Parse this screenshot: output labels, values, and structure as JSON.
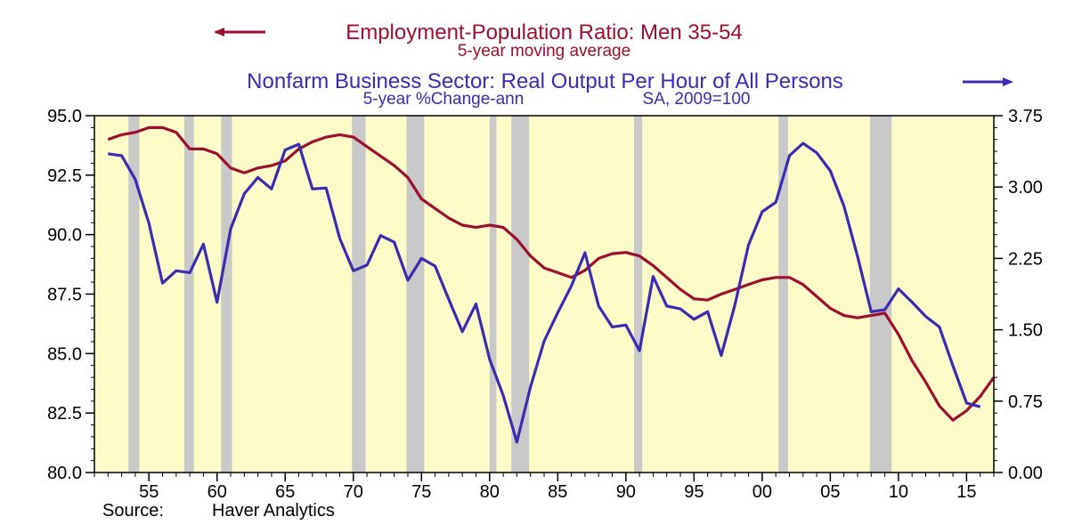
{
  "chart_data": {
    "type": "line",
    "titles": {
      "left_series_title": "Employment-Population Ratio: Men 35-54",
      "left_series_subtitle": "5-year moving average",
      "right_series_title": "Nonfarm Business Sector: Real Output Per Hour of All Persons",
      "right_series_subtitle_a": "5-year %Change-ann",
      "right_series_subtitle_b": "SA, 2009=100"
    },
    "source": {
      "label": "Source:",
      "name": "Haver Analytics"
    },
    "x_axis": {
      "range": [
        1951,
        2017
      ],
      "ticks": [
        {
          "year": 1955,
          "label": "55"
        },
        {
          "year": 1960,
          "label": "60"
        },
        {
          "year": 1965,
          "label": "65"
        },
        {
          "year": 1970,
          "label": "70"
        },
        {
          "year": 1975,
          "label": "75"
        },
        {
          "year": 1980,
          "label": "80"
        },
        {
          "year": 1985,
          "label": "85"
        },
        {
          "year": 1990,
          "label": "90"
        },
        {
          "year": 1995,
          "label": "95"
        },
        {
          "year": 2000,
          "label": "00"
        },
        {
          "year": 2005,
          "label": "05"
        },
        {
          "year": 2010,
          "label": "10"
        },
        {
          "year": 2015,
          "label": "15"
        }
      ]
    },
    "y_left": {
      "range": [
        80.0,
        95.0
      ],
      "ticks": [
        {
          "v": 80.0,
          "label": "80.0"
        },
        {
          "v": 82.5,
          "label": "82.5"
        },
        {
          "v": 85.0,
          "label": "85.0"
        },
        {
          "v": 87.5,
          "label": "87.5"
        },
        {
          "v": 90.0,
          "label": "90.0"
        },
        {
          "v": 92.5,
          "label": "92.5"
        },
        {
          "v": 95.0,
          "label": "95.0"
        }
      ]
    },
    "y_right": {
      "range": [
        0.0,
        3.75
      ],
      "ticks": [
        {
          "v": 0.0,
          "label": "0.00"
        },
        {
          "v": 0.75,
          "label": "0.75"
        },
        {
          "v": 1.5,
          "label": "1.50"
        },
        {
          "v": 2.25,
          "label": "2.25"
        },
        {
          "v": 3.0,
          "label": "3.00"
        },
        {
          "v": 3.75,
          "label": "3.75"
        }
      ]
    },
    "recessions": [
      [
        1953.5,
        1954.3
      ],
      [
        1957.6,
        1958.3
      ],
      [
        1960.3,
        1961.1
      ],
      [
        1969.9,
        1970.9
      ],
      [
        1973.9,
        1975.2
      ],
      [
        1980.0,
        1980.5
      ],
      [
        1981.6,
        1982.9
      ],
      [
        1990.6,
        1991.2
      ],
      [
        2001.2,
        2001.9
      ],
      [
        2007.9,
        2009.5
      ]
    ],
    "series": [
      {
        "name": "Employment-Population Ratio: Men 35-54",
        "axis": "left",
        "color": "#9c0f2e",
        "points": [
          [
            1952,
            94.0
          ],
          [
            1953,
            94.2
          ],
          [
            1954,
            94.3
          ],
          [
            1955,
            94.5
          ],
          [
            1956,
            94.5
          ],
          [
            1957,
            94.3
          ],
          [
            1958,
            93.6
          ],
          [
            1959,
            93.6
          ],
          [
            1960,
            93.4
          ],
          [
            1961,
            92.8
          ],
          [
            1962,
            92.6
          ],
          [
            1963,
            92.8
          ],
          [
            1964,
            92.9
          ],
          [
            1965,
            93.1
          ],
          [
            1966,
            93.6
          ],
          [
            1967,
            93.9
          ],
          [
            1968,
            94.1
          ],
          [
            1969,
            94.2
          ],
          [
            1970,
            94.1
          ],
          [
            1971,
            93.7
          ],
          [
            1972,
            93.3
          ],
          [
            1973,
            92.9
          ],
          [
            1974,
            92.4
          ],
          [
            1975,
            91.5
          ],
          [
            1976,
            91.1
          ],
          [
            1977,
            90.7
          ],
          [
            1978,
            90.4
          ],
          [
            1979,
            90.3
          ],
          [
            1980,
            90.4
          ],
          [
            1981,
            90.3
          ],
          [
            1982,
            89.8
          ],
          [
            1983,
            89.1
          ],
          [
            1984,
            88.6
          ],
          [
            1985,
            88.4
          ],
          [
            1986,
            88.2
          ],
          [
            1987,
            88.5
          ],
          [
            1988,
            89.0
          ],
          [
            1989,
            89.2
          ],
          [
            1990,
            89.25
          ],
          [
            1991,
            89.1
          ],
          [
            1992,
            88.7
          ],
          [
            1993,
            88.2
          ],
          [
            1994,
            87.7
          ],
          [
            1995,
            87.3
          ],
          [
            1996,
            87.25
          ],
          [
            1997,
            87.5
          ],
          [
            1998,
            87.7
          ],
          [
            1999,
            87.9
          ],
          [
            2000,
            88.1
          ],
          [
            2001,
            88.2
          ],
          [
            2002,
            88.2
          ],
          [
            2003,
            87.9
          ],
          [
            2004,
            87.4
          ],
          [
            2005,
            86.9
          ],
          [
            2006,
            86.6
          ],
          [
            2007,
            86.5
          ],
          [
            2008,
            86.6
          ],
          [
            2009,
            86.7
          ],
          [
            2010,
            85.8
          ],
          [
            2011,
            84.7
          ],
          [
            2012,
            83.8
          ],
          [
            2013,
            82.8
          ],
          [
            2014,
            82.2
          ],
          [
            2015,
            82.6
          ],
          [
            2016,
            83.2
          ],
          [
            2017,
            84.0
          ]
        ]
      },
      {
        "name": "Nonfarm Business Sector: Real Output Per Hour of All Persons",
        "axis": "right",
        "color": "#3a2bb0",
        "points": [
          [
            1952,
            3.35
          ],
          [
            1953,
            3.33
          ],
          [
            1954,
            3.08
          ],
          [
            1955,
            2.62
          ],
          [
            1956,
            1.99
          ],
          [
            1957,
            2.12
          ],
          [
            1958,
            2.1
          ],
          [
            1959,
            2.4
          ],
          [
            1960,
            1.79
          ],
          [
            1961,
            2.56
          ],
          [
            1962,
            2.93
          ],
          [
            1963,
            3.1
          ],
          [
            1964,
            2.98
          ],
          [
            1965,
            3.39
          ],
          [
            1966,
            3.45
          ],
          [
            1967,
            2.98
          ],
          [
            1968,
            2.99
          ],
          [
            1969,
            2.46
          ],
          [
            1970,
            2.12
          ],
          [
            1971,
            2.18
          ],
          [
            1972,
            2.49
          ],
          [
            1973,
            2.42
          ],
          [
            1974,
            2.02
          ],
          [
            1975,
            2.25
          ],
          [
            1976,
            2.17
          ],
          [
            1977,
            1.82
          ],
          [
            1978,
            1.48
          ],
          [
            1979,
            1.77
          ],
          [
            1980,
            1.19
          ],
          [
            1981,
            0.81
          ],
          [
            1982,
            0.32
          ],
          [
            1983,
            0.9
          ],
          [
            1984,
            1.38
          ],
          [
            1985,
            1.68
          ],
          [
            1986,
            1.96
          ],
          [
            1987,
            2.31
          ],
          [
            1988,
            1.75
          ],
          [
            1989,
            1.53
          ],
          [
            1990,
            1.55
          ],
          [
            1991,
            1.28
          ],
          [
            1992,
            2.06
          ],
          [
            1993,
            1.75
          ],
          [
            1994,
            1.72
          ],
          [
            1995,
            1.61
          ],
          [
            1996,
            1.69
          ],
          [
            1997,
            1.23
          ],
          [
            1998,
            1.76
          ],
          [
            1999,
            2.39
          ],
          [
            2000,
            2.74
          ],
          [
            2001,
            2.84
          ],
          [
            2002,
            3.33
          ],
          [
            2003,
            3.46
          ],
          [
            2004,
            3.36
          ],
          [
            2005,
            3.17
          ],
          [
            2006,
            2.8
          ],
          [
            2007,
            2.27
          ],
          [
            2008,
            1.69
          ],
          [
            2009,
            1.71
          ],
          [
            2010,
            1.93
          ],
          [
            2011,
            1.79
          ],
          [
            2012,
            1.64
          ],
          [
            2013,
            1.53
          ],
          [
            2014,
            1.12
          ],
          [
            2015,
            0.73
          ],
          [
            2016,
            0.69
          ]
        ]
      }
    ],
    "background_color": "#fdfcc8",
    "recession_color": "#c9c9c9",
    "grid": false
  }
}
